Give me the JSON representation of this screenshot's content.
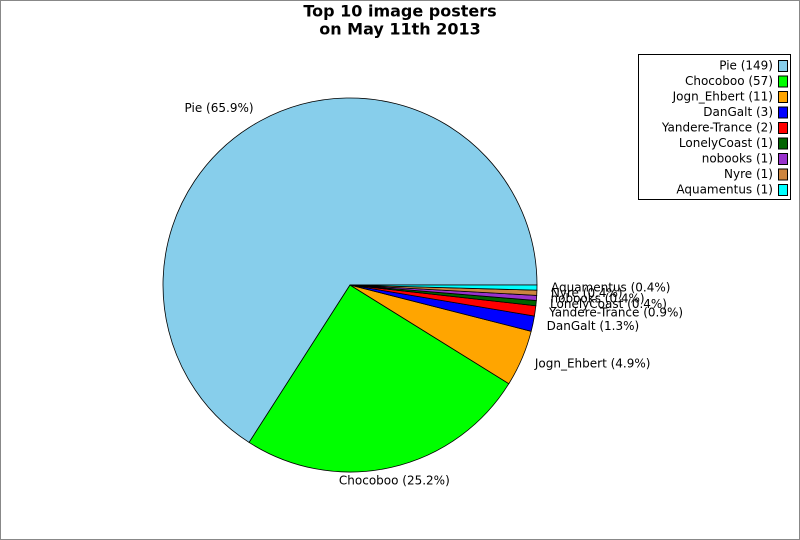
{
  "chart_data": {
    "type": "pie",
    "title": [
      "Top 10 image posters",
      "on May 11th 2013"
    ],
    "categories": [
      "Pie",
      "Chocoboo",
      "Jogn_Ehbert",
      "DanGalt",
      "Yandere-Trance",
      "LonelyCoast",
      "nobooks",
      "Nyre",
      "Aquamentus"
    ],
    "values": [
      149,
      57,
      11,
      3,
      2,
      1,
      1,
      1,
      1
    ],
    "slice_labels": [
      "Pie (65.9%)",
      "Chocoboo (25.2%)",
      "Jogn_Ehbert (4.9%)",
      "DanGalt (1.3%)",
      "Yandere-Trance (0.9%)",
      "LonelyCoast (0.4%)",
      "nobooks (0.4%)",
      "Nyre (0.4%)",
      "Aquamentus (0.4%)"
    ],
    "legend_labels": [
      "Pie (149)",
      "Chocoboo (57)",
      "Jogn_Ehbert (11)",
      "DanGalt (3)",
      "Yandere-Trance (2)",
      "LonelyCoast (1)",
      "nobooks (1)",
      "Nyre (1)",
      "Aquamentus (1)"
    ],
    "colors": [
      "#87ceeb",
      "#00ff00",
      "#ffa500",
      "#0000ff",
      "#ff0000",
      "#006400",
      "#9932cc",
      "#cd853f",
      "#00ffff"
    ],
    "legend": "upper right"
  }
}
